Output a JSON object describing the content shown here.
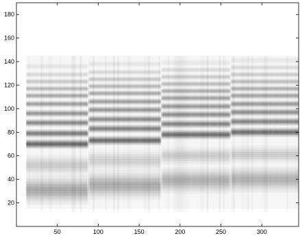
{
  "chart_data": {
    "type": "heatmap",
    "title": "",
    "xlabel": "",
    "ylabel": "",
    "xlim": [
      0,
      345
    ],
    "ylim": [
      0,
      190
    ],
    "x_ticks": [
      50,
      100,
      150,
      200,
      250,
      300
    ],
    "y_ticks": [
      20,
      40,
      60,
      80,
      100,
      120,
      140,
      160,
      180
    ],
    "colormap": {
      "low": "#ffffff",
      "high": "#000000"
    },
    "grid": false,
    "segments": [
      {
        "x_start": 12,
        "x_end": 88,
        "bands": [
          {
            "y": 31,
            "intensity": 0.62,
            "width": 5.5
          },
          {
            "y": 52,
            "intensity": 0.32,
            "width": 4.0
          },
          {
            "y": 70,
            "intensity": 0.92,
            "width": 1.8
          },
          {
            "y": 79,
            "intensity": 0.72,
            "width": 1.6
          },
          {
            "y": 88,
            "intensity": 0.62,
            "width": 1.5
          },
          {
            "y": 96,
            "intensity": 0.52,
            "width": 1.4
          },
          {
            "y": 104,
            "intensity": 0.45,
            "width": 1.3
          },
          {
            "y": 111,
            "intensity": 0.38,
            "width": 1.2
          },
          {
            "y": 117,
            "intensity": 0.3,
            "width": 1.2
          },
          {
            "y": 123,
            "intensity": 0.22,
            "width": 1.2
          },
          {
            "y": 129,
            "intensity": 0.14,
            "width": 1.2
          },
          {
            "y": 136,
            "intensity": 0.08,
            "width": 1.5
          }
        ]
      },
      {
        "x_start": 88,
        "x_end": 177,
        "bands": [
          {
            "y": 35,
            "intensity": 0.6,
            "width": 5.5
          },
          {
            "y": 56,
            "intensity": 0.28,
            "width": 4.0
          },
          {
            "y": 73,
            "intensity": 0.88,
            "width": 1.8
          },
          {
            "y": 83,
            "intensity": 0.68,
            "width": 1.6
          },
          {
            "y": 91,
            "intensity": 0.6,
            "width": 1.5
          },
          {
            "y": 99,
            "intensity": 0.52,
            "width": 1.4
          },
          {
            "y": 106,
            "intensity": 0.45,
            "width": 1.3
          },
          {
            "y": 113,
            "intensity": 0.38,
            "width": 1.2
          },
          {
            "y": 119,
            "intensity": 0.3,
            "width": 1.2
          },
          {
            "y": 125,
            "intensity": 0.22,
            "width": 1.2
          },
          {
            "y": 131,
            "intensity": 0.14,
            "width": 1.2
          },
          {
            "y": 138,
            "intensity": 0.08,
            "width": 1.5
          }
        ]
      },
      {
        "x_start": 177,
        "x_end": 262,
        "bands": [
          {
            "y": 39,
            "intensity": 0.55,
            "width": 5.0
          },
          {
            "y": 60,
            "intensity": 0.3,
            "width": 3.5
          },
          {
            "y": 78,
            "intensity": 0.86,
            "width": 1.8
          },
          {
            "y": 87,
            "intensity": 0.66,
            "width": 1.6
          },
          {
            "y": 95,
            "intensity": 0.58,
            "width": 1.5
          },
          {
            "y": 102,
            "intensity": 0.5,
            "width": 1.4
          },
          {
            "y": 109,
            "intensity": 0.43,
            "width": 1.3
          },
          {
            "y": 115,
            "intensity": 0.36,
            "width": 1.2
          },
          {
            "y": 121,
            "intensity": 0.28,
            "width": 1.2
          },
          {
            "y": 127,
            "intensity": 0.2,
            "width": 1.2
          },
          {
            "y": 133,
            "intensity": 0.13,
            "width": 1.2
          },
          {
            "y": 139,
            "intensity": 0.07,
            "width": 1.5
          }
        ]
      },
      {
        "x_start": 262,
        "x_end": 345,
        "bands": [
          {
            "y": 40,
            "intensity": 0.55,
            "width": 5.0
          },
          {
            "y": 61,
            "intensity": 0.3,
            "width": 3.5
          },
          {
            "y": 80,
            "intensity": 0.86,
            "width": 1.8
          },
          {
            "y": 89,
            "intensity": 0.66,
            "width": 1.6
          },
          {
            "y": 97,
            "intensity": 0.58,
            "width": 1.5
          },
          {
            "y": 104,
            "intensity": 0.5,
            "width": 1.4
          },
          {
            "y": 111,
            "intensity": 0.43,
            "width": 1.3
          },
          {
            "y": 117,
            "intensity": 0.36,
            "width": 1.2
          },
          {
            "y": 123,
            "intensity": 0.28,
            "width": 1.2
          },
          {
            "y": 129,
            "intensity": 0.2,
            "width": 1.2
          },
          {
            "y": 135,
            "intensity": 0.13,
            "width": 1.2
          },
          {
            "y": 141,
            "intensity": 0.07,
            "width": 1.5
          }
        ]
      }
    ]
  }
}
